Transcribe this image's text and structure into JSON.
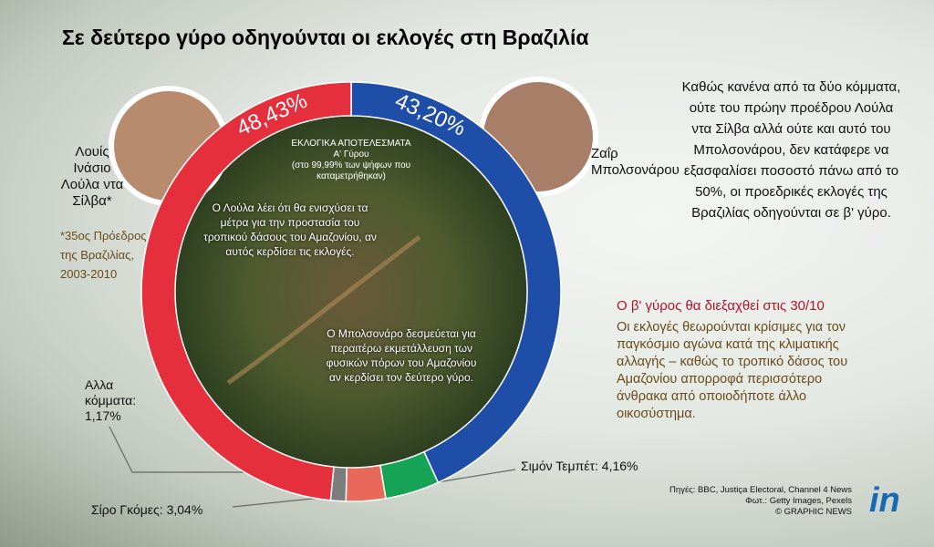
{
  "chart_data": {
    "type": "pie",
    "title": "Σε δεύτερο γύρο οδηγούνται οι εκλογές στη Βραζιλία",
    "subtitle": "ΕΚΛΟΓΙΚΑ ΑΠΟΤΕΛΕΣΜΑΤΑ",
    "categories": [
      "Ζαΐρ Μπολσονάρου",
      "Σιμόν Τεμπέτ:",
      "Σίρο Γκόμες:",
      "Αλλα κόμματα:",
      "Λουίς Ινάσιο Λούλα ντα Σίλβα*"
    ],
    "values": [
      43.2,
      4.16,
      3.04,
      1.17,
      48.43
    ],
    "value_labels": [
      "43,20%",
      "4,16%",
      "3,04%",
      "1,17%",
      "48,43%"
    ],
    "colors": [
      "#1f4ea8",
      "#17a356",
      "#e8685a",
      "#7d7d7d",
      "#e52f3d"
    ],
    "annotations": [
      "*35ος Πρόεδρος της Βραζιλίας, 2003-2010",
      "Α' Γύρου",
      "(στο 99,99% των ψήφων που καταμετρήθηκαν)",
      "Ο Λούλα λέει ότι θα ενισχύσει τα μέτρα για την προστασία του τροπικού δάσους του Αμαζονίου, αν αυτός κερδίσει τις εκλογές.",
      "Ο Μπολσονάρο δεσμεύεται για περαιτέρω εκμετάλλευση των φυσικών πόρων του Αμαζονίου αν κερδίσει τον δεύτερο γύρο.",
      "Καθώς κανένα από τα δύο κόμματα, ούτε του πρώην προέδρου Λούλα ντα Σίλβα αλλά ούτε και αυτό του Μπολσονάρου, δεν κατάφερε να εξασφαλίσει ποσοστό πάνω από το 50%, οι προεδρικές εκλογές της Βραζιλίας οδηγούνται σε β' γύρο.",
      "Ο β' γύρος θα διεξαχθεί στις 30/10",
      "Οι εκλογές θεωρούνται κρίσιμες για τον παγκόσμιο αγώνα κατά της κλιματικής αλλαγής – καθώς το τροπικό δάσος του Αμαζονίου απορροφά περισσότερο άνθρακα από οποιοδήποτε άλλο οικοσύστημα.",
      "Πηγές: BBC, Justiça Electoral, Channel 4 News",
      "Φωτ.: Getty Images, Pexels",
      "© GRAPHIC NEWS",
      "in"
    ]
  }
}
